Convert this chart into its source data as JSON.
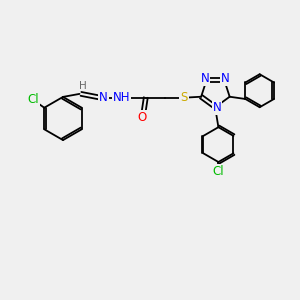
{
  "background_color": "#f0f0f0",
  "bond_color": "#000000",
  "atom_colors": {
    "Cl": "#00bb00",
    "N": "#0000ff",
    "O": "#ff0000",
    "S": "#ccaa00",
    "H": "#666666",
    "C": "#000000"
  },
  "figsize": [
    3.0,
    3.0
  ],
  "dpi": 100
}
